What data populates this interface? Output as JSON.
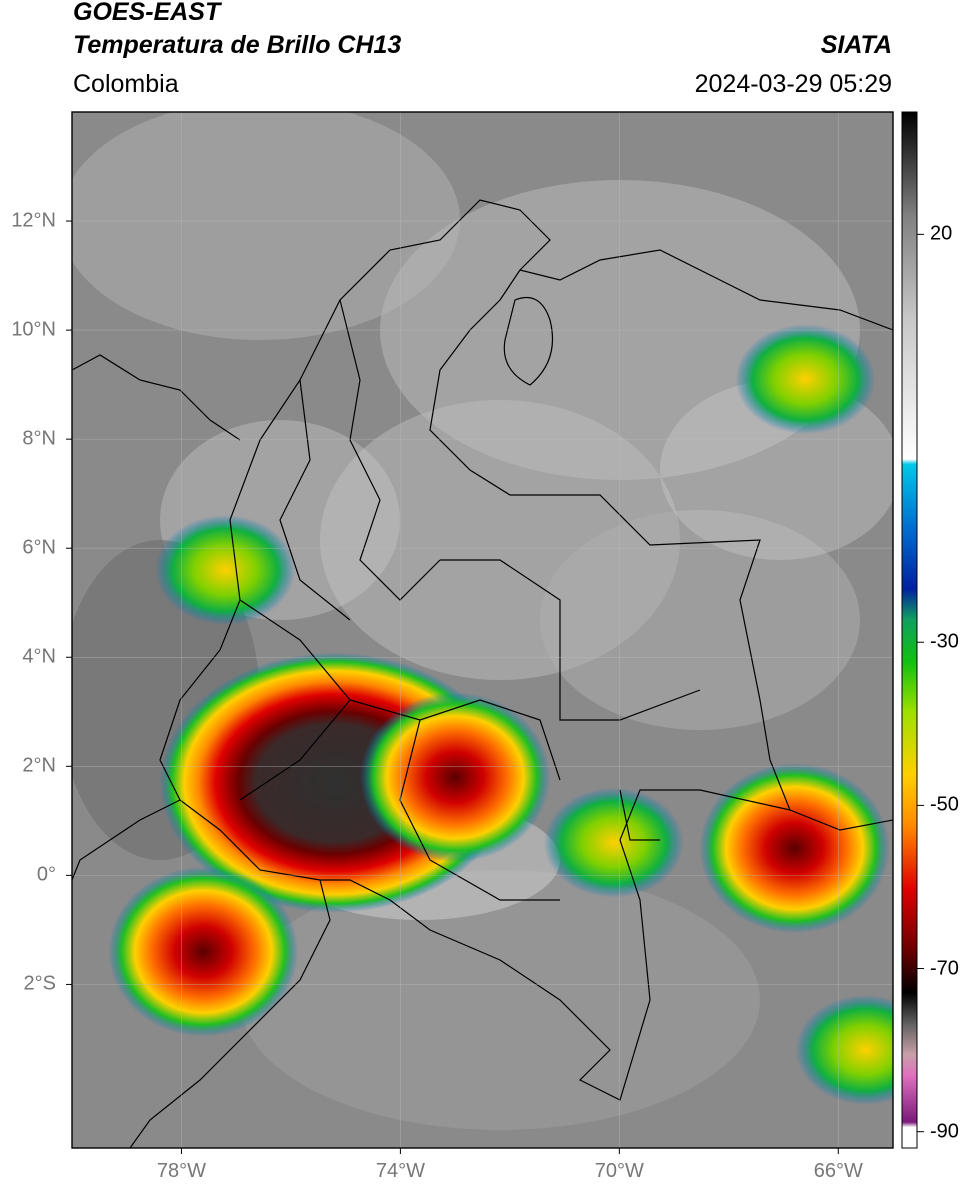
{
  "header": {
    "satellite": "GOES-EAST",
    "product": "Temperatura de Brillo CH13",
    "region": "Colombia",
    "agency": "SIATA",
    "timestamp": "2024-03-29 05:29"
  },
  "map": {
    "lat_ticks": [
      {
        "value": 12,
        "label": "12°N"
      },
      {
        "value": 10,
        "label": "10°N"
      },
      {
        "value": 8,
        "label": "8°N"
      },
      {
        "value": 6,
        "label": "6°N"
      },
      {
        "value": 4,
        "label": "4°N"
      },
      {
        "value": 2,
        "label": "2°N"
      },
      {
        "value": 0,
        "label": "0°"
      },
      {
        "value": -2,
        "label": "2°S"
      }
    ],
    "lon_ticks": [
      {
        "value": -78,
        "label": "78°W"
      },
      {
        "value": -74,
        "label": "74°W"
      },
      {
        "value": -70,
        "label": "70°W"
      },
      {
        "value": -66,
        "label": "66°W"
      }
    ],
    "lon_range": [
      -80,
      -65
    ],
    "lat_range": [
      -5,
      14
    ]
  },
  "colorbar": {
    "range": [
      -92,
      35
    ],
    "tick_labels": [
      {
        "value": 20,
        "label": "20"
      },
      {
        "value": -30,
        "label": "-30"
      },
      {
        "value": -50,
        "label": "-50"
      },
      {
        "value": -70,
        "label": "-70"
      },
      {
        "value": -90,
        "label": "-90"
      }
    ]
  },
  "storms": [
    {
      "name": "storm-core-central",
      "lon": -75.2,
      "lat": 1.7,
      "intensity": "core"
    },
    {
      "name": "storm-east-of-core",
      "lon": -73.0,
      "lat": 1.8,
      "intensity": "strong"
    },
    {
      "name": "storm-southwest",
      "lon": -77.6,
      "lat": -1.4,
      "intensity": "strong"
    },
    {
      "name": "storm-southeast-center",
      "lon": -70.1,
      "lat": 0.6,
      "intensity": "moderate"
    },
    {
      "name": "storm-far-east",
      "lon": -66.8,
      "lat": 0.5,
      "intensity": "strong"
    },
    {
      "name": "storm-venezuela-coast",
      "lon": -66.6,
      "lat": 9.1,
      "intensity": "moderate"
    },
    {
      "name": "storm-choco",
      "lon": -77.2,
      "lat": 5.6,
      "intensity": "moderate"
    },
    {
      "name": "storm-bottom-right",
      "lon": -65.5,
      "lat": -3.2,
      "intensity": "moderate"
    }
  ]
}
